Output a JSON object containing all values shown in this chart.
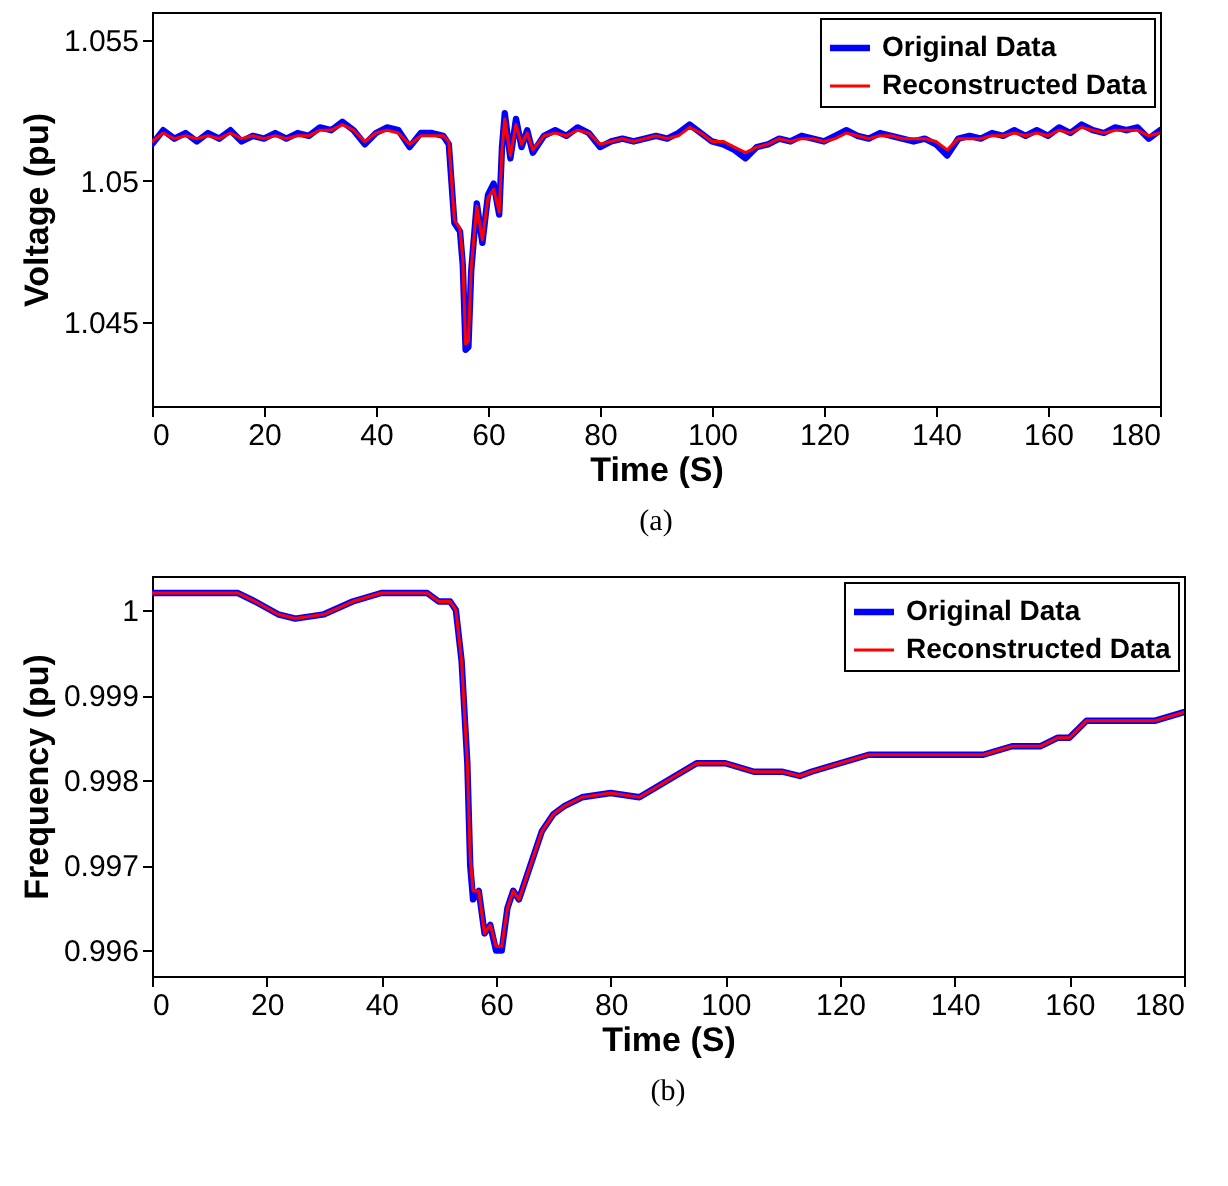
{
  "chart_data": [
    {
      "type": "line",
      "xlabel": "Time (S)",
      "ylabel": "Voltage (pu)",
      "annotations": [
        "(a)"
      ],
      "xlim": [
        0,
        180
      ],
      "xticks": [
        0,
        20,
        40,
        60,
        80,
        100,
        120,
        140,
        160,
        180
      ],
      "ylim": [
        1.042,
        1.056
      ],
      "yticks": [
        1.045,
        1.05,
        1.055
      ],
      "grid": false,
      "legend": "top right",
      "line_style": "solid",
      "x": [
        0,
        2,
        4,
        6,
        8,
        10,
        12,
        14,
        16,
        18,
        20,
        22,
        24,
        26,
        28,
        30,
        32,
        34,
        36,
        38,
        40,
        42,
        44,
        46,
        48,
        50,
        52,
        53,
        54,
        55,
        55.5,
        56,
        56.5,
        57,
        58,
        59,
        60,
        61,
        62,
        62.5,
        63,
        64,
        65,
        66,
        67,
        68,
        70,
        72,
        74,
        76,
        78,
        80,
        82,
        84,
        86,
        88,
        90,
        92,
        94,
        96,
        98,
        100,
        102,
        104,
        106,
        108,
        110,
        112,
        114,
        116,
        118,
        120,
        122,
        124,
        126,
        128,
        130,
        132,
        134,
        136,
        138,
        140,
        142,
        144,
        146,
        148,
        150,
        152,
        154,
        156,
        158,
        160,
        162,
        164,
        166,
        168,
        170,
        172,
        174,
        176,
        178,
        180
      ],
      "series": [
        {
          "name": "Original Data",
          "color": "#0000ff",
          "values": [
            1.0513,
            1.0518,
            1.0515,
            1.0517,
            1.0514,
            1.0517,
            1.0515,
            1.0518,
            1.0514,
            1.0516,
            1.0515,
            1.0517,
            1.0515,
            1.0517,
            1.0516,
            1.0519,
            1.0518,
            1.0521,
            1.0518,
            1.0513,
            1.0517,
            1.0519,
            1.0518,
            1.0512,
            1.0517,
            1.0517,
            1.0516,
            1.0513,
            1.0485,
            1.0482,
            1.047,
            1.044,
            1.0441,
            1.0468,
            1.0492,
            1.0478,
            1.0495,
            1.0499,
            1.0488,
            1.0512,
            1.0524,
            1.0508,
            1.0522,
            1.0512,
            1.0518,
            1.051,
            1.0516,
            1.0518,
            1.0516,
            1.0519,
            1.0517,
            1.0512,
            1.0514,
            1.0515,
            1.0514,
            1.0515,
            1.0516,
            1.0515,
            1.0517,
            1.052,
            1.0517,
            1.0514,
            1.0513,
            1.0511,
            1.0508,
            1.0512,
            1.0513,
            1.0515,
            1.0514,
            1.0516,
            1.0515,
            1.0514,
            1.0516,
            1.0518,
            1.0516,
            1.0515,
            1.0517,
            1.0516,
            1.0515,
            1.0514,
            1.0515,
            1.0513,
            1.0509,
            1.0515,
            1.0516,
            1.0515,
            1.0517,
            1.0516,
            1.0518,
            1.0516,
            1.0518,
            1.0516,
            1.0519,
            1.0517,
            1.052,
            1.0518,
            1.0517,
            1.0519,
            1.0518,
            1.0519,
            1.0515,
            1.0518
          ]
        },
        {
          "name": "Reconstructed Data",
          "color": "#ff0000",
          "values": [
            1.0514,
            1.0517,
            1.0515,
            1.0516,
            1.0515,
            1.0516,
            1.0515,
            1.0517,
            1.0515,
            1.0516,
            1.0515,
            1.0516,
            1.0515,
            1.0516,
            1.0516,
            1.0518,
            1.0518,
            1.052,
            1.0518,
            1.0514,
            1.0517,
            1.0518,
            1.0517,
            1.0513,
            1.0516,
            1.0516,
            1.0516,
            1.0514,
            1.0486,
            1.0483,
            1.0472,
            1.0442,
            1.0443,
            1.0469,
            1.0491,
            1.0479,
            1.0494,
            1.0497,
            1.0489,
            1.0511,
            1.0522,
            1.0509,
            1.052,
            1.0513,
            1.0517,
            1.0511,
            1.0516,
            1.0517,
            1.0516,
            1.0518,
            1.0517,
            1.0513,
            1.0514,
            1.0515,
            1.0514,
            1.0515,
            1.0516,
            1.0515,
            1.0516,
            1.0519,
            1.0517,
            1.0514,
            1.0514,
            1.0512,
            1.051,
            1.0512,
            1.0513,
            1.0515,
            1.0514,
            1.0515,
            1.0515,
            1.0514,
            1.0515,
            1.0517,
            1.0516,
            1.0515,
            1.0516,
            1.0516,
            1.0515,
            1.0515,
            1.0515,
            1.0514,
            1.0511,
            1.0515,
            1.0515,
            1.0515,
            1.0516,
            1.0516,
            1.0517,
            1.0516,
            1.0517,
            1.0516,
            1.0518,
            1.0517,
            1.0519,
            1.0518,
            1.0517,
            1.0518,
            1.0518,
            1.0518,
            1.0516,
            1.0517
          ]
        }
      ]
    },
    {
      "type": "line",
      "xlabel": "Time (S)",
      "ylabel": "Frequency (pu)",
      "annotations": [
        "(b)"
      ],
      "xlim": [
        0,
        180
      ],
      "xticks": [
        0,
        20,
        40,
        60,
        80,
        100,
        120,
        140,
        160,
        180
      ],
      "ylim": [
        0.9957,
        1.0004
      ],
      "yticks": [
        0.996,
        0.997,
        0.998,
        0.999,
        1
      ],
      "grid": false,
      "legend": "top right",
      "line_style": "solid",
      "x": [
        0,
        5,
        10,
        15,
        18,
        22,
        25,
        30,
        35,
        40,
        45,
        48,
        50,
        52,
        53,
        54,
        55,
        55.5,
        56,
        57,
        58,
        59,
        60,
        61,
        62,
        63,
        64,
        66,
        68,
        70,
        72,
        75,
        80,
        85,
        90,
        95,
        100,
        105,
        110,
        113,
        115,
        120,
        125,
        130,
        135,
        140,
        145,
        150,
        155,
        158,
        160,
        163,
        165,
        170,
        175,
        180
      ],
      "series": [
        {
          "name": "Original Data",
          "color": "#0000ff",
          "values": [
            1.0002,
            1.0002,
            1.0002,
            1.0002,
            1.0001,
            0.99995,
            0.9999,
            0.99995,
            1.0001,
            1.0002,
            1.0002,
            1.0002,
            1.0001,
            1.0001,
            1,
            0.9994,
            0.9982,
            0.997,
            0.9966,
            0.9967,
            0.9962,
            0.9963,
            0.996,
            0.996,
            0.9965,
            0.9967,
            0.9966,
            0.997,
            0.9974,
            0.9976,
            0.9977,
            0.9978,
            0.99785,
            0.9978,
            0.998,
            0.9982,
            0.9982,
            0.9981,
            0.9981,
            0.99805,
            0.9981,
            0.9982,
            0.9983,
            0.9983,
            0.9983,
            0.9983,
            0.9983,
            0.9984,
            0.9984,
            0.9985,
            0.9985,
            0.9987,
            0.9987,
            0.9987,
            0.9987,
            0.9988
          ]
        },
        {
          "name": "Reconstructed Data",
          "color": "#ff0000",
          "values": [
            1.0002,
            1.0002,
            1.0002,
            1.0002,
            1.0001,
            0.99995,
            0.9999,
            0.99995,
            1.0001,
            1.0002,
            1.0002,
            1.0002,
            1.0001,
            1.0001,
            1,
            0.9994,
            0.9982,
            0.9971,
            0.9967,
            0.9967,
            0.9962,
            0.9963,
            0.99605,
            0.99605,
            0.9965,
            0.9967,
            0.9966,
            0.997,
            0.9974,
            0.9976,
            0.9977,
            0.9978,
            0.99785,
            0.9978,
            0.998,
            0.9982,
            0.9982,
            0.9981,
            0.9981,
            0.99805,
            0.9981,
            0.9982,
            0.9983,
            0.9983,
            0.9983,
            0.9983,
            0.9983,
            0.9984,
            0.9984,
            0.9985,
            0.9985,
            0.9987,
            0.9987,
            0.9987,
            0.9987,
            0.9988
          ]
        }
      ]
    }
  ]
}
